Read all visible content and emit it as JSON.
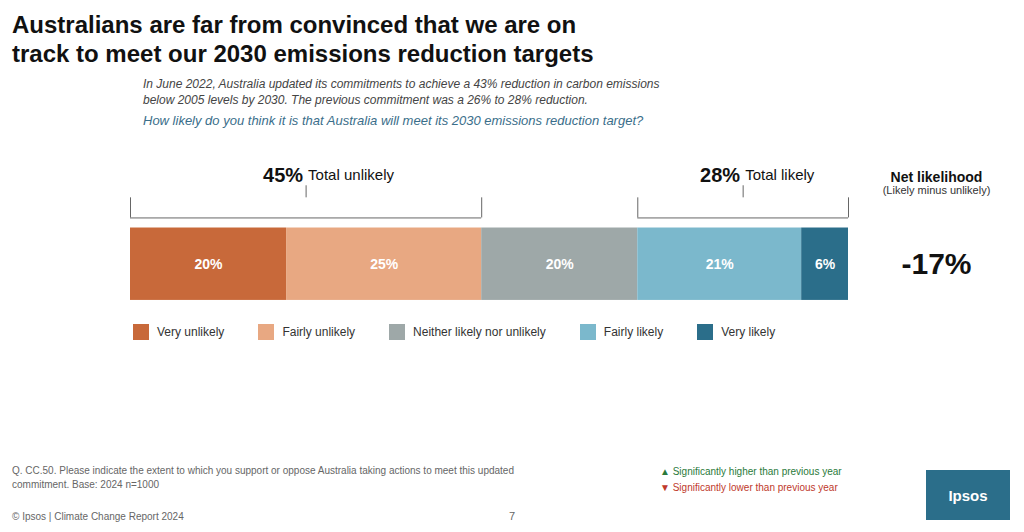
{
  "chart_data": {
    "type": "bar",
    "orientation": "horizontal",
    "stacked": true,
    "title": [
      "Australians are far from convinced that we are on",
      "track to meet our 2030 emissions reduction targets"
    ],
    "subtitle": [
      "In June 2022, Australia updated its commitments to achieve a 43% reduction in carbon emissions",
      "below 2005 levels by 2030. The previous commitment was a 26% to 28% reduction."
    ],
    "question": "How likely do you think it is that Australia will meet its 2030 emissions reduction target?",
    "categories": [
      null
    ],
    "series": [
      {
        "name": "Very unlikely",
        "color": "#C8693A",
        "values": [
          20
        ],
        "value_labels": [
          "20%"
        ]
      },
      {
        "name": "Fairly unlikely",
        "color": "#E8A882",
        "values": [
          25
        ],
        "value_labels": [
          "25%"
        ]
      },
      {
        "name": "Neither likely nor unlikely",
        "color": "#9EA8A8",
        "values": [
          20
        ],
        "value_labels": [
          "20%"
        ]
      },
      {
        "name": "Fairly likely",
        "color": "#7BB8CC",
        "values": [
          21
        ],
        "value_labels": [
          "21%"
        ]
      },
      {
        "name": "Very likely",
        "color": "#2B6E8A",
        "values": [
          6
        ],
        "value_labels": [
          "6%"
        ]
      }
    ],
    "xlim": [
      0,
      92
    ],
    "tick_labels": false,
    "grid": false,
    "legend": "bottom",
    "data_labels": true,
    "annotations": [
      {
        "value": 45,
        "label": "45%",
        "text": "Total unlikely",
        "span": [
          0,
          45
        ]
      },
      {
        "value": 28,
        "label": "28%",
        "text": "Total likely",
        "span": [
          65,
          92
        ]
      },
      {
        "text": "Net likelihood",
        "subtext": "(Likely minus unlikely)",
        "value": -17,
        "label": "-17%"
      }
    ],
    "caption": [
      "Q. CC.50. Please indicate the extent to which you support or oppose Australia taking actions to meet this updated",
      "commitment. Base: 2024 n=1000",
      "© Ipsos | Climate Change Report 2024"
    ],
    "page_number": "7",
    "significance": [
      "▲ Significantly higher than previous year",
      "▼ Significantly lower than previous year"
    ],
    "logo": "Ipsos"
  }
}
